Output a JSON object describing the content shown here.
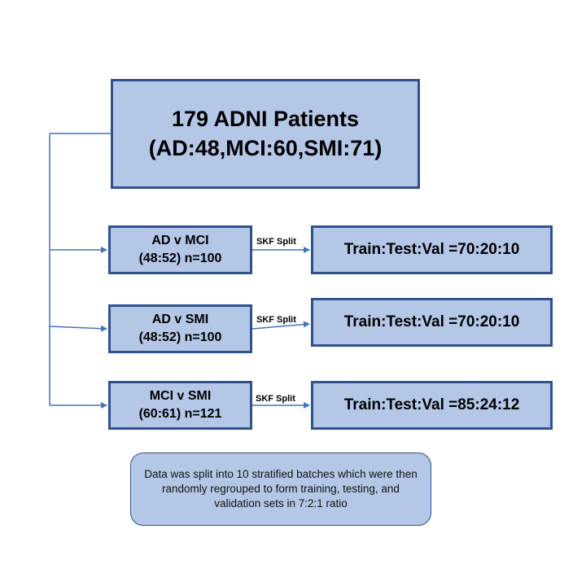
{
  "root": {
    "line1": "179 ADNI Patients",
    "line2": "(AD:48,MCI:60,SMI:71)"
  },
  "groups": [
    {
      "line1": "AD v MCI",
      "line2": "(48:52) n=100",
      "split_label": "SKF Split",
      "result": "Train:Test:Val =70:20:10"
    },
    {
      "line1": "AD v SMI",
      "line2": "(48:52) n=100",
      "split_label": "SKF Split",
      "result": "Train:Test:Val =70:20:10"
    },
    {
      "line1": "MCI v SMI",
      "line2": "(60:61) n=121",
      "split_label": "SKF Split",
      "result": "Train:Test:Val =85:24:12"
    }
  ],
  "note": "Data was split into 10 stratified batches which were then randomly regrouped to form training, testing, and validation sets in 7:2:1 ratio",
  "colors": {
    "box_fill": "#b4c7e7",
    "box_border": "#2f528f",
    "connector": "#4472c4"
  }
}
